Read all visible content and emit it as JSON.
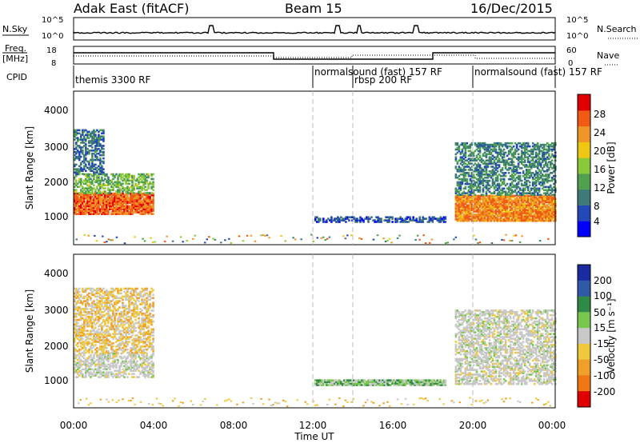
{
  "header": {
    "station": "Adak East (fitACF)",
    "beam": "Beam 15",
    "date": "16/Dec/2015"
  },
  "labels": {
    "nsky": "N.Sky",
    "nsearch": "N.Search",
    "freq": "Freq.",
    "mhz": "[MHz]",
    "nave": "Nave",
    "cpid": "CPID",
    "pow_tick_top": "10^5",
    "pow_tick_bottom": "10^0",
    "freq_tick_top": "18",
    "freq_tick_bottom": "8",
    "nave_tick_top": "60",
    "nave_tick_bottom": "0"
  },
  "cpid_segments": [
    {
      "label": "themis 3300 RF",
      "start_hour": 0
    },
    {
      "label": "normalsound (fast) 157 RF",
      "start_hour": 12
    },
    {
      "label": "rbsp 200 RF",
      "start_hour": 14
    },
    {
      "label": "normalsound (fast) 157 RF",
      "start_hour": 20
    }
  ],
  "axes": {
    "xlabel": "Time UT",
    "ylabel": "Slant Range [km]",
    "x_ticks": [
      "00:00",
      "04:00",
      "08:00",
      "12:00",
      "16:00",
      "20:00",
      "00:00"
    ],
    "x_range_hours": [
      0,
      24
    ],
    "y_ticks": [
      "1000",
      "2000",
      "3000",
      "4000"
    ],
    "y_range_km": [
      180,
      4600
    ]
  },
  "power_colorbar": {
    "title": "Power [dB]",
    "ticks": [
      "4",
      "8",
      "12",
      "16",
      "20",
      "24",
      "28"
    ],
    "colors": [
      "#0000ff",
      "#2348b8",
      "#3d7a78",
      "#4fa04f",
      "#8cc83c",
      "#f0c814",
      "#f09628",
      "#f05a14",
      "#e00000"
    ]
  },
  "velocity_colorbar": {
    "title": "Velocity [m s⁻¹]",
    "ticks": [
      "200",
      "100",
      "50",
      "15",
      "-15",
      "-50",
      "-100",
      "-200"
    ],
    "colors": [
      "#1a2aa0",
      "#2e5aa8",
      "#2e8a46",
      "#78c850",
      "#c8c8c8",
      "#f0c83c",
      "#f0a028",
      "#f07814",
      "#e00000"
    ]
  },
  "chart_data": [
    {
      "type": "heatmap",
      "title": "Power [dB]",
      "xlabel": "Time UT",
      "ylabel": "Slant Range [km]",
      "x_unit": "hours UT",
      "y_unit": "km",
      "xlim": [
        0,
        24
      ],
      "ylim": [
        180,
        4600
      ],
      "regions": [
        {
          "t0": 0.0,
          "t1": 4.0,
          "r0": 1050,
          "r1": 1650,
          "power_dB": 26
        },
        {
          "t0": 0.0,
          "t1": 4.0,
          "r0": 1650,
          "r1": 2200,
          "power_dB": 14
        },
        {
          "t0": 0.0,
          "t1": 1.5,
          "r0": 2200,
          "r1": 3500,
          "power_dB": 8
        },
        {
          "t0": 12.0,
          "t1": 18.5,
          "r0": 820,
          "r1": 960,
          "power_dB": 6
        },
        {
          "t0": 19.0,
          "t1": 24.0,
          "r0": 850,
          "r1": 1600,
          "power_dB": 24
        },
        {
          "t0": 19.0,
          "t1": 24.0,
          "r0": 1600,
          "r1": 3100,
          "power_dB": 10
        }
      ]
    },
    {
      "type": "heatmap",
      "title": "Velocity [m s⁻¹]",
      "xlabel": "Time UT",
      "ylabel": "Slant Range [km]",
      "x_unit": "hours UT",
      "y_unit": "km",
      "xlim": [
        0,
        24
      ],
      "ylim": [
        180,
        4600
      ],
      "regions": [
        {
          "t0": 0.0,
          "t1": 4.0,
          "r0": 1050,
          "r1": 1750,
          "velocity_ms": 0
        },
        {
          "t0": 0.0,
          "t1": 4.0,
          "r0": 1750,
          "r1": 3600,
          "velocity_ms": -20
        },
        {
          "t0": 12.0,
          "t1": 18.5,
          "r0": 820,
          "r1": 960,
          "velocity_ms": 20
        },
        {
          "t0": 19.0,
          "t1": 24.0,
          "r0": 850,
          "r1": 3000,
          "velocity_ms": 0
        }
      ]
    }
  ]
}
